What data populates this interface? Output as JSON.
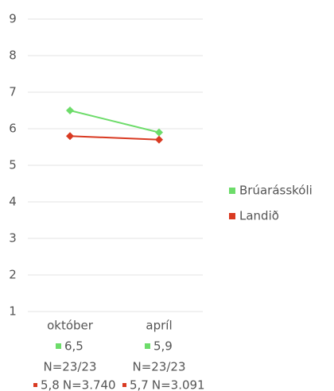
{
  "chart_data": {
    "type": "line",
    "categories": [
      "október",
      "apríl"
    ],
    "series": [
      {
        "name": "Brúarásskóli",
        "color": "#6ddc6a",
        "values": [
          6.5,
          5.9
        ],
        "value_labels": [
          "6,5",
          "5,9"
        ],
        "n_labels": [
          "N=23/23",
          "N=23/23"
        ]
      },
      {
        "name": "Landið",
        "color": "#d93a22",
        "values": [
          5.8,
          5.7
        ],
        "value_labels": [
          "5,8",
          "5,7"
        ],
        "n_labels": [
          "N=3.740",
          "N=3.091"
        ]
      }
    ],
    "ylim": [
      1,
      9
    ],
    "yticks": [
      1,
      2,
      3,
      4,
      5,
      6,
      7,
      8,
      9
    ],
    "grid": true,
    "legend": "right"
  }
}
